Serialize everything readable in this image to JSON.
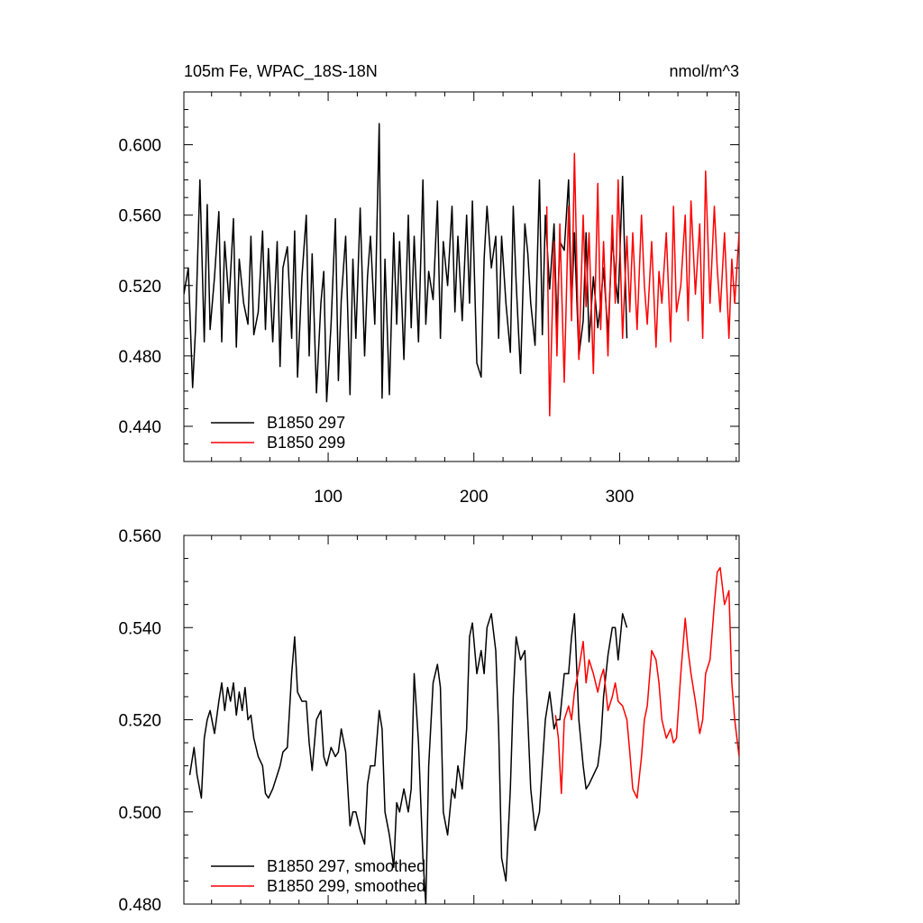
{
  "chart_data": [
    {
      "type": "line",
      "title": "105m Fe, WPAC_18S-18N",
      "units": "nmol/m^3",
      "xlim": [
        1,
        382
      ],
      "ylim": [
        0.42,
        0.63
      ],
      "x_ticks": [
        100,
        200,
        300
      ],
      "y_ticks": [
        0.44,
        0.48,
        0.52,
        0.56,
        0.6
      ],
      "y_tick_labels": [
        "0.440",
        "0.480",
        "0.520",
        "0.560",
        "0.600"
      ],
      "x_tick_labels": [
        "100",
        "200",
        "300"
      ],
      "legend_position": "bottom-left",
      "series": [
        {
          "name": "B1850 297",
          "color": "#000000",
          "x": [
            1,
            4,
            7,
            9,
            12,
            15,
            17,
            19,
            22,
            25,
            27,
            29,
            32,
            35,
            37,
            39,
            42,
            45,
            47,
            49,
            52,
            55,
            57,
            59,
            62,
            65,
            67,
            69,
            72,
            75,
            77,
            79,
            82,
            85,
            87,
            89,
            92,
            95,
            97,
            99,
            102,
            105,
            107,
            109,
            112,
            115,
            117,
            119,
            122,
            125,
            127,
            129,
            132,
            135,
            137,
            139,
            142,
            145,
            147,
            149,
            152,
            155,
            157,
            159,
            162,
            165,
            167,
            169,
            172,
            175,
            177,
            179,
            182,
            185,
            187,
            189,
            192,
            195,
            197,
            199,
            202,
            205,
            207,
            209,
            212,
            215,
            217,
            219,
            222,
            225,
            227,
            229,
            232,
            235,
            237,
            239,
            242,
            245,
            247,
            249,
            252,
            255,
            257,
            259,
            262,
            265,
            267,
            269,
            272,
            275,
            277,
            279,
            282,
            285,
            287,
            289,
            292,
            295,
            297,
            299,
            302,
            305
          ],
          "values": [
            0.515,
            0.53,
            0.462,
            0.495,
            0.58,
            0.488,
            0.566,
            0.495,
            0.525,
            0.562,
            0.488,
            0.545,
            0.51,
            0.558,
            0.485,
            0.535,
            0.51,
            0.498,
            0.548,
            0.492,
            0.505,
            0.551,
            0.495,
            0.541,
            0.488,
            0.545,
            0.474,
            0.53,
            0.542,
            0.49,
            0.551,
            0.468,
            0.525,
            0.56,
            0.48,
            0.538,
            0.459,
            0.51,
            0.528,
            0.454,
            0.498,
            0.558,
            0.466,
            0.512,
            0.548,
            0.458,
            0.535,
            0.49,
            0.564,
            0.48,
            0.525,
            0.548,
            0.498,
            0.612,
            0.456,
            0.535,
            0.458,
            0.55,
            0.498,
            0.545,
            0.478,
            0.56,
            0.496,
            0.548,
            0.488,
            0.58,
            0.498,
            0.528,
            0.512,
            0.568,
            0.49,
            0.545,
            0.52,
            0.565,
            0.505,
            0.548,
            0.5,
            0.56,
            0.51,
            0.568,
            0.476,
            0.468,
            0.535,
            0.565,
            0.53,
            0.548,
            0.49,
            0.548,
            0.51,
            0.482,
            0.565,
            0.522,
            0.47,
            0.555,
            0.538,
            0.51,
            0.486,
            0.58,
            0.492,
            0.56,
            0.518,
            0.555,
            0.496,
            0.545,
            0.54,
            0.58,
            0.508,
            0.55,
            0.48,
            0.5,
            0.55,
            0.488,
            0.525,
            0.496,
            0.51,
            0.53,
            0.492,
            0.548,
            0.525,
            0.51,
            0.582,
            0.49
          ]
        },
        {
          "name": "B1850 299",
          "color": "#ff0000",
          "x": [
            250,
            252,
            255,
            257,
            259,
            262,
            265,
            267,
            269,
            272,
            275,
            277,
            279,
            282,
            285,
            287,
            289,
            292,
            295,
            297,
            299,
            302,
            305,
            307,
            309,
            312,
            315,
            317,
            319,
            322,
            325,
            327,
            329,
            332,
            335,
            337,
            339,
            342,
            345,
            347,
            349,
            352,
            355,
            357,
            359,
            362,
            365,
            367,
            369,
            372,
            375,
            377,
            379,
            382
          ],
          "values": [
            0.565,
            0.446,
            0.545,
            0.48,
            0.555,
            0.465,
            0.565,
            0.5,
            0.595,
            0.478,
            0.56,
            0.508,
            0.55,
            0.47,
            0.578,
            0.495,
            0.545,
            0.48,
            0.56,
            0.51,
            0.58,
            0.49,
            0.548,
            0.505,
            0.55,
            0.495,
            0.56,
            0.52,
            0.498,
            0.545,
            0.485,
            0.528,
            0.51,
            0.55,
            0.488,
            0.565,
            0.505,
            0.52,
            0.56,
            0.5,
            0.568,
            0.515,
            0.555,
            0.49,
            0.585,
            0.51,
            0.565,
            0.53,
            0.505,
            0.55,
            0.49,
            0.535,
            0.51,
            0.55
          ]
        }
      ]
    },
    {
      "type": "line",
      "xlim": [
        1,
        382
      ],
      "ylim": [
        0.48,
        0.56
      ],
      "y_ticks": [
        0.48,
        0.5,
        0.52,
        0.54,
        0.56
      ],
      "y_tick_labels": [
        "0.480",
        "0.500",
        "0.520",
        "0.540",
        "0.560"
      ],
      "legend_position": "bottom-left",
      "series": [
        {
          "name": "B1850 297, smoothed",
          "color": "#000000",
          "x": [
            5,
            8,
            10,
            13,
            15,
            17,
            19,
            22,
            25,
            27,
            29,
            31,
            33,
            35,
            37,
            39,
            41,
            43,
            45,
            47,
            49,
            52,
            55,
            57,
            59,
            62,
            65,
            67,
            69,
            72,
            75,
            77,
            79,
            82,
            85,
            87,
            89,
            92,
            95,
            97,
            99,
            102,
            105,
            107,
            109,
            112,
            115,
            117,
            119,
            122,
            125,
            127,
            129,
            132,
            135,
            137,
            139,
            142,
            145,
            147,
            149,
            152,
            155,
            157,
            159,
            162,
            165,
            167,
            169,
            172,
            175,
            177,
            179,
            182,
            185,
            187,
            189,
            192,
            195,
            197,
            199,
            202,
            205,
            207,
            209,
            212,
            215,
            217,
            219,
            222,
            225,
            227,
            229,
            232,
            235,
            237,
            239,
            242,
            245,
            247,
            249,
            252,
            255,
            257,
            259,
            262,
            265,
            267,
            269,
            272,
            275,
            277,
            279,
            282,
            285,
            287,
            289,
            292,
            295,
            297,
            299,
            302,
            305
          ],
          "values": [
            0.508,
            0.514,
            0.508,
            0.503,
            0.516,
            0.52,
            0.522,
            0.517,
            0.524,
            0.528,
            0.522,
            0.527,
            0.524,
            0.528,
            0.521,
            0.526,
            0.522,
            0.527,
            0.52,
            0.521,
            0.516,
            0.512,
            0.51,
            0.504,
            0.503,
            0.505,
            0.508,
            0.51,
            0.513,
            0.514,
            0.53,
            0.538,
            0.526,
            0.524,
            0.524,
            0.515,
            0.509,
            0.52,
            0.522,
            0.512,
            0.51,
            0.514,
            0.512,
            0.513,
            0.518,
            0.513,
            0.497,
            0.5,
            0.5,
            0.496,
            0.493,
            0.506,
            0.51,
            0.51,
            0.522,
            0.518,
            0.5,
            0.495,
            0.488,
            0.502,
            0.5,
            0.505,
            0.5,
            0.505,
            0.53,
            0.515,
            0.49,
            0.48,
            0.51,
            0.528,
            0.532,
            0.527,
            0.5,
            0.495,
            0.505,
            0.503,
            0.51,
            0.505,
            0.518,
            0.538,
            0.541,
            0.53,
            0.535,
            0.53,
            0.54,
            0.543,
            0.535,
            0.518,
            0.49,
            0.485,
            0.505,
            0.525,
            0.538,
            0.533,
            0.535,
            0.52,
            0.505,
            0.496,
            0.5,
            0.51,
            0.52,
            0.526,
            0.518,
            0.52,
            0.52,
            0.53,
            0.53,
            0.538,
            0.543,
            0.52,
            0.51,
            0.505,
            0.506,
            0.508,
            0.51,
            0.515,
            0.525,
            0.534,
            0.54,
            0.54,
            0.533,
            0.543,
            0.54
          ]
        },
        {
          "name": "B1850 299, smoothed",
          "color": "#ff0000",
          "x": [
            256,
            258,
            260,
            262,
            265,
            267,
            269,
            272,
            275,
            277,
            279,
            282,
            285,
            287,
            289,
            292,
            295,
            297,
            299,
            302,
            305,
            307,
            309,
            312,
            315,
            317,
            319,
            322,
            325,
            327,
            329,
            332,
            335,
            337,
            339,
            342,
            345,
            347,
            349,
            352,
            355,
            357,
            359,
            362,
            365,
            367,
            369,
            372,
            375,
            377,
            379,
            382
          ],
          "values": [
            0.521,
            0.516,
            0.504,
            0.52,
            0.523,
            0.52,
            0.526,
            0.531,
            0.537,
            0.528,
            0.533,
            0.53,
            0.526,
            0.529,
            0.531,
            0.522,
            0.525,
            0.528,
            0.524,
            0.523,
            0.52,
            0.513,
            0.505,
            0.503,
            0.512,
            0.52,
            0.523,
            0.535,
            0.533,
            0.528,
            0.52,
            0.516,
            0.518,
            0.515,
            0.516,
            0.53,
            0.542,
            0.535,
            0.53,
            0.524,
            0.517,
            0.52,
            0.53,
            0.533,
            0.545,
            0.552,
            0.553,
            0.545,
            0.548,
            0.528,
            0.52,
            0.512
          ]
        }
      ]
    }
  ],
  "colors": {
    "series_297": "#000000",
    "series_299": "#ff0000"
  }
}
